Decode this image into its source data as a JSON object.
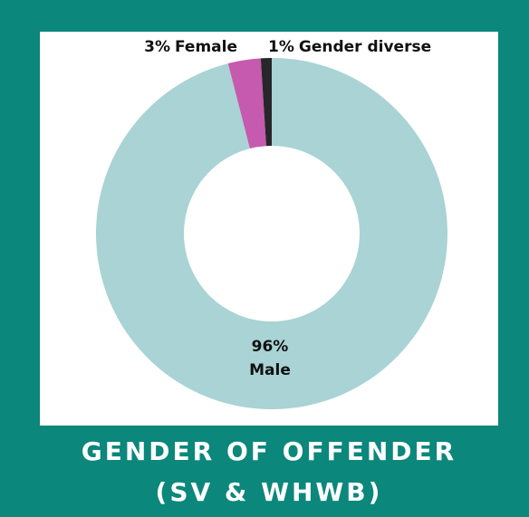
{
  "chart_data": {
    "type": "donut",
    "title": "GENDER OF OFFENDER",
    "subtitle": "(SV & WHWB)",
    "categories": [
      "Male",
      "Female",
      "Gender diverse"
    ],
    "values": [
      96,
      3,
      1
    ],
    "value_labels": [
      "96%",
      "3%",
      "1%"
    ],
    "colors": [
      "#a9d3d4",
      "#c65aae",
      "#27262b"
    ]
  }
}
